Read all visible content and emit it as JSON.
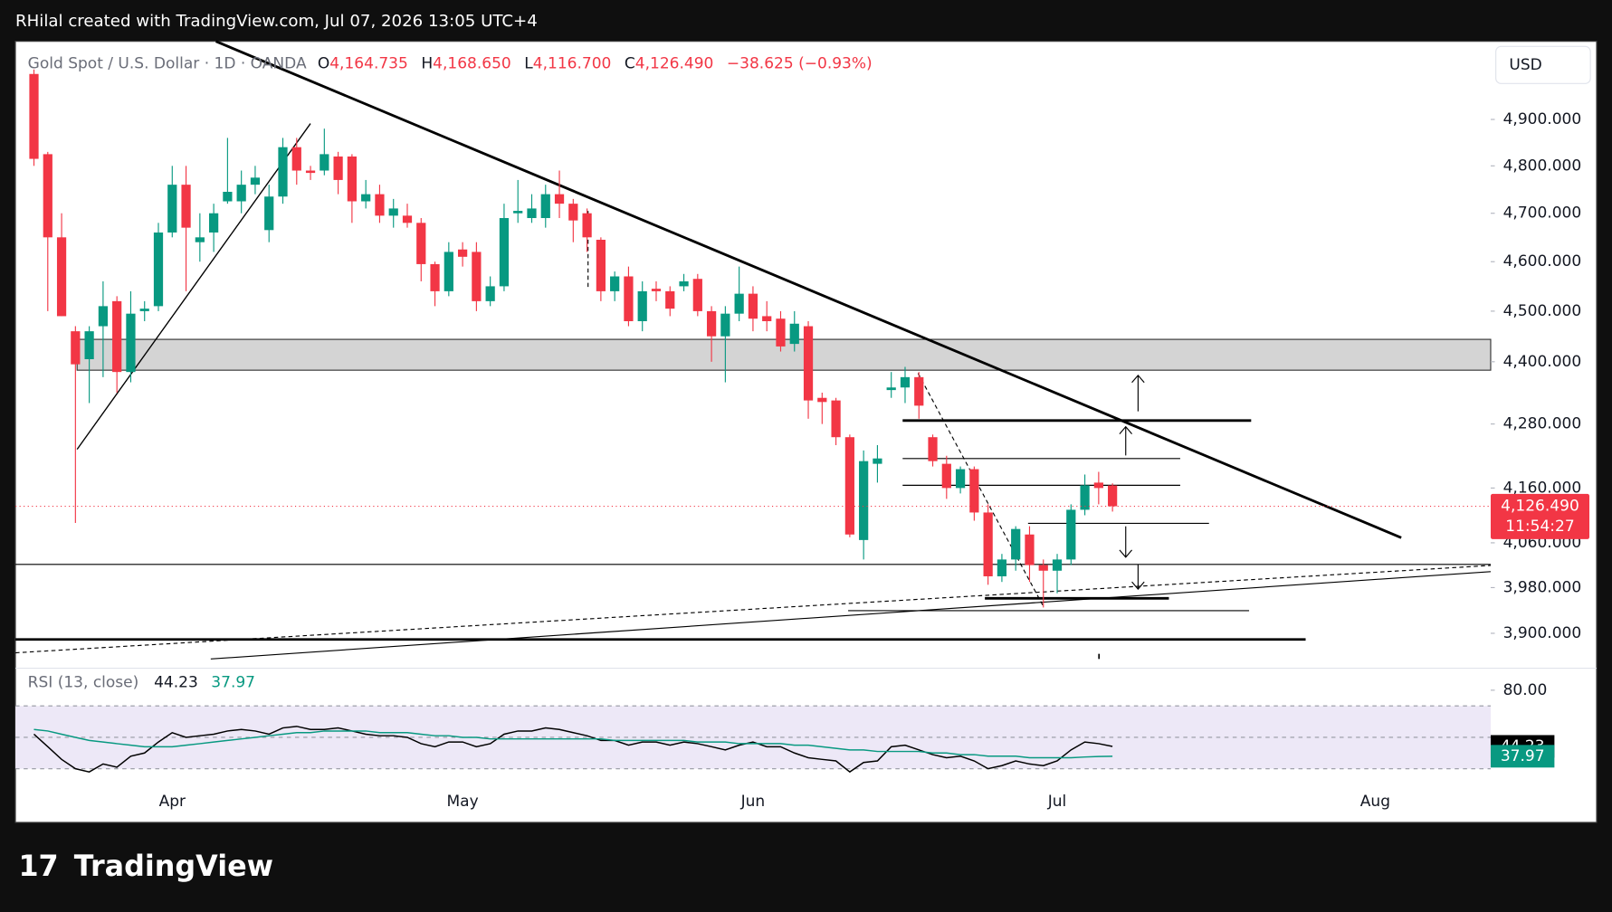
{
  "header": "RHilal created with TradingView.com, Jul 07, 2026 13:05 UTC+4",
  "logo": "TradingView",
  "currency": "USD",
  "chart_data": [
    {
      "type": "candlestick",
      "log_scale": true,
      "grid": false,
      "legend": {
        "symbol": "Gold Spot / U.S. Dollar · 1D · OANDA",
        "o": "O",
        "open": "4,164.735",
        "h": "H",
        "high": "4,168.650",
        "l": "L",
        "low": "4,116.700",
        "c": "C",
        "close": "4,126.490",
        "change": "−38.625 (−0.93%)"
      },
      "last_price_label": "4,126.490",
      "countdown": "11:54:27",
      "up_color": "#089981",
      "down_color": "#f23645",
      "series": [
        {
          "open": [
            5000,
            4825,
            4650,
            4460,
            4405,
            4470,
            4520,
            4380,
            4500,
            4510,
            4660,
            4760,
            4640,
            4660,
            4725,
            4725,
            4760,
            4665,
            4735,
            4840,
            4790,
            4790,
            4820,
            4820,
            4725,
            4740,
            4695,
            4695,
            4680,
            4595,
            4540,
            4625,
            4620,
            4520,
            4550,
            4700,
            4690,
            4690,
            4740,
            4720,
            4700,
            4645,
            4540,
            4570,
            4480,
            4545,
            4540,
            4550,
            4565,
            4500,
            4450,
            4495,
            4535,
            4490,
            4485,
            4435,
            4470,
            4330,
            4325,
            4255,
            4065,
            4205,
            4345,
            4350,
            4370,
            4255,
            4205,
            4160,
            4195,
            4115,
            4000,
            4030,
            4075,
            4020,
            4010,
            4030,
            4120,
            4170,
            4164.735
          ],
          "high": [
            5010,
            4830,
            4700,
            4470,
            4470,
            4560,
            4530,
            4540,
            4520,
            4680,
            4800,
            4800,
            4700,
            4720,
            4860,
            4790,
            4800,
            4760,
            4860,
            4860,
            4800,
            4880,
            4830,
            4825,
            4770,
            4760,
            4730,
            4720,
            4690,
            4600,
            4640,
            4640,
            4640,
            4570,
            4720,
            4770,
            4740,
            4760,
            4790,
            4730,
            4710,
            4650,
            4580,
            4590,
            4560,
            4560,
            4550,
            4575,
            4575,
            4510,
            4510,
            4590,
            4550,
            4520,
            4500,
            4500,
            4480,
            4340,
            4330,
            4260,
            4230,
            4240,
            4380,
            4390,
            4380,
            4260,
            4220,
            4200,
            4200,
            4130,
            4040,
            4090,
            4090,
            4030,
            4040,
            4130,
            4185,
            4190,
            4168.65
          ],
          "low": [
            4800,
            4500,
            4490,
            4096,
            4320,
            4370,
            4340,
            4360,
            4480,
            4500,
            4650,
            4540,
            4600,
            4620,
            4720,
            4700,
            4740,
            4640,
            4720,
            4760,
            4770,
            4780,
            4740,
            4680,
            4710,
            4680,
            4670,
            4670,
            4560,
            4510,
            4530,
            4590,
            4500,
            4510,
            4540,
            4680,
            4680,
            4670,
            4690,
            4640,
            4620,
            4520,
            4520,
            4470,
            4460,
            4520,
            4490,
            4540,
            4490,
            4400,
            4360,
            4480,
            4460,
            4460,
            4420,
            4420,
            4290,
            4280,
            4240,
            4070,
            4030,
            4170,
            4330,
            4320,
            4290,
            4200,
            4140,
            4150,
            4100,
            3985,
            3990,
            4010,
            3990,
            3945,
            3970,
            4020,
            4110,
            4130,
            4116.7
          ],
          "close": [
            4815,
            4650,
            4490,
            4395,
            4460,
            4510,
            4380,
            4495,
            4505,
            4660,
            4760,
            4670,
            4650,
            4700,
            4745,
            4760,
            4775,
            4735,
            4840,
            4790,
            4785,
            4825,
            4770,
            4725,
            4740,
            4695,
            4710,
            4680,
            4595,
            4540,
            4620,
            4610,
            4520,
            4550,
            4690,
            4705,
            4710,
            4740,
            4720,
            4685,
            4650,
            4540,
            4570,
            4480,
            4540,
            4540,
            4505,
            4560,
            4500,
            4450,
            4495,
            4535,
            4485,
            4480,
            4430,
            4475,
            4325,
            4322,
            4255,
            4075,
            4210,
            4215,
            4350,
            4370,
            4315,
            4210,
            4160,
            4195,
            4115,
            4000,
            4030,
            4085,
            4020,
            4010,
            4030,
            4120,
            4165,
            4160,
            4126.49
          ]
        }
      ],
      "xlim": [
        -1.34,
        105.35
      ],
      "xticks": [
        {
          "value": 10,
          "label": "Apr"
        },
        {
          "value": 31,
          "label": "May"
        },
        {
          "value": 52,
          "label": "Jun"
        },
        {
          "value": 74,
          "label": "Jul"
        },
        {
          "value": 97,
          "label": "Aug"
        }
      ],
      "ylim": [
        3840,
        5073
      ],
      "yticks": [
        {
          "value": 4900,
          "label": "4,900.000"
        },
        {
          "value": 4800,
          "label": "4,800.000"
        },
        {
          "value": 4700,
          "label": "4,700.000"
        },
        {
          "value": 4600,
          "label": "4,600.000"
        },
        {
          "value": 4500,
          "label": "4,500.000"
        },
        {
          "value": 4400,
          "label": "4,400.000"
        },
        {
          "value": 4280,
          "label": "4,280.000"
        },
        {
          "value": 4160,
          "label": "4,160.000"
        },
        {
          "value": 4060,
          "label": "4,060.000"
        },
        {
          "value": 3980,
          "label": "3,980.000"
        },
        {
          "value": 3900,
          "label": "3,900.000"
        }
      ]
    },
    {
      "type": "line",
      "title": "RSI (13, close)",
      "series": [
        {
          "color": "#000000",
          "values": [
            52,
            44,
            36,
            30,
            28,
            33,
            31,
            38,
            40,
            47,
            53,
            50,
            51,
            52,
            54,
            55,
            54,
            52,
            56,
            57,
            55,
            55,
            56,
            54,
            52,
            51,
            51,
            50,
            46,
            44,
            47,
            47,
            44,
            46,
            52,
            54,
            54,
            56,
            55,
            53,
            51,
            48,
            48,
            45,
            47,
            47,
            45,
            47,
            46,
            44,
            42,
            45,
            47,
            44,
            44,
            40,
            37,
            36,
            35,
            28,
            34,
            35,
            44,
            45,
            42,
            39,
            37,
            38,
            35,
            30,
            32,
            35,
            33,
            32,
            35,
            42,
            47,
            46,
            44.23
          ]
        },
        {
          "color": "#089981",
          "values": [
            55,
            54,
            52,
            50,
            48,
            47,
            46,
            45,
            44,
            44,
            44,
            45,
            46,
            47,
            48,
            49,
            50,
            51,
            52,
            53,
            53,
            54,
            54,
            54,
            54,
            53,
            53,
            53,
            52,
            51,
            51,
            50,
            50,
            49,
            49,
            49,
            49,
            49,
            49,
            49,
            49,
            49,
            48,
            48,
            48,
            48,
            48,
            48,
            47,
            47,
            47,
            46,
            46,
            46,
            46,
            45,
            45,
            44,
            43,
            42,
            42,
            41,
            41,
            41,
            41,
            40,
            40,
            39,
            39,
            38,
            38,
            38,
            37,
            37,
            37,
            37,
            37.5,
            37.8,
            37.97
          ]
        }
      ],
      "ylim": [
        15.5,
        94
      ],
      "band": [
        30,
        70
      ],
      "midline": 50,
      "yticks": [
        {
          "value": 80,
          "label": "80.00"
        }
      ]
    }
  ]
}
